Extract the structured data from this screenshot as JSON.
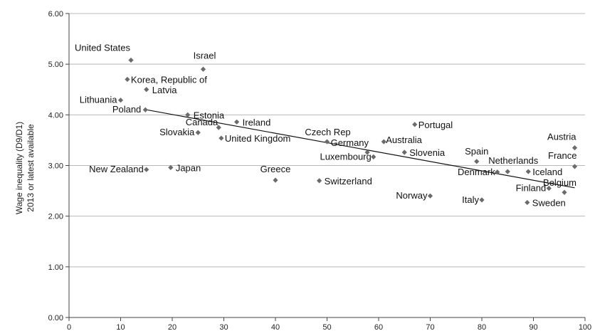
{
  "chart_data": {
    "type": "scatter",
    "title": "",
    "ylabel_lines": [
      "Wage inequality (D9/D1)",
      "2013 or latest available"
    ],
    "xlabel": "",
    "xlim": [
      0,
      100
    ],
    "ylim": [
      0,
      6
    ],
    "x_ticks": [
      "0",
      "10",
      "20",
      "30",
      "40",
      "50",
      "60",
      "70",
      "80",
      "90",
      "100"
    ],
    "y_ticks": [
      "0.00",
      "1.00",
      "2.00",
      "3.00",
      "4.00",
      "5.00",
      "6.00"
    ],
    "grid": "horizontal",
    "marker_color": "#6b6b6b",
    "trendline": {
      "x": [
        15,
        98
      ],
      "y": [
        4.1,
        2.56
      ]
    },
    "points": [
      {
        "label": "United States",
        "x": 12,
        "y": 5.08,
        "anchor": "end",
        "ldx": -1,
        "ldy": -13
      },
      {
        "label": "Israel",
        "x": 26,
        "y": 4.9,
        "anchor": "middle",
        "ldx": 2,
        "ldy": -15
      },
      {
        "label": "Korea, Republic of",
        "x": 11.3,
        "y": 4.7,
        "anchor": "start",
        "ldx": 5,
        "ldy": 5
      },
      {
        "label": "Latvia",
        "x": 15,
        "y": 4.5,
        "anchor": "start",
        "ldx": 8,
        "ldy": 5
      },
      {
        "label": "Lithuania",
        "x": 10,
        "y": 4.29,
        "anchor": "end",
        "ldx": -5,
        "ldy": 4
      },
      {
        "label": "Poland",
        "x": 14.8,
        "y": 4.1,
        "anchor": "end",
        "ldx": -6,
        "ldy": 4
      },
      {
        "label": "Estonia",
        "x": 23,
        "y": 4.0,
        "anchor": "start",
        "ldx": 8,
        "ldy": 5
      },
      {
        "label": "Ireland",
        "x": 32.5,
        "y": 3.86,
        "anchor": "start",
        "ldx": 8,
        "ldy": 5
      },
      {
        "label": "Canada",
        "x": 29,
        "y": 3.75,
        "anchor": "end",
        "ldx": -1,
        "ldy": -3
      },
      {
        "label": "Slovakia",
        "x": 25,
        "y": 3.65,
        "anchor": "end",
        "ldx": -5,
        "ldy": 4
      },
      {
        "label": "United Kingdom",
        "x": 29.5,
        "y": 3.54,
        "anchor": "start",
        "ldx": 5,
        "ldy": 5
      },
      {
        "label": "Czech Rep",
        "x": 50,
        "y": 3.47,
        "anchor": "middle",
        "ldx": 1,
        "ldy": -9
      },
      {
        "label": "Germany",
        "x": 57.8,
        "y": 3.26,
        "anchor": "end",
        "ldx": 2,
        "ldy": -9
      },
      {
        "label": "Australia",
        "x": 61,
        "y": 3.47,
        "anchor": "start",
        "ldx": 3,
        "ldy": 2
      },
      {
        "label": "Portugal",
        "x": 67,
        "y": 3.81,
        "anchor": "start",
        "ldx": 5,
        "ldy": 5
      },
      {
        "label": "Slovenia",
        "x": 65,
        "y": 3.26,
        "anchor": "start",
        "ldx": 7,
        "ldy": 5
      },
      {
        "label": "Luxembourg",
        "x": 59,
        "y": 3.17,
        "anchor": "end",
        "ldx": -3,
        "ldy": 4
      },
      {
        "label": "New Zealand",
        "x": 15,
        "y": 2.92,
        "anchor": "end",
        "ldx": -4,
        "ldy": 4
      },
      {
        "label": "Japan",
        "x": 19.7,
        "y": 2.96,
        "anchor": "start",
        "ldx": 7,
        "ldy": 5
      },
      {
        "label": "Greece",
        "x": 40,
        "y": 2.71,
        "anchor": "middle",
        "ldx": 0,
        "ldy": -11
      },
      {
        "label": "Switzerland",
        "x": 48.5,
        "y": 2.7,
        "anchor": "start",
        "ldx": 7,
        "ldy": 5
      },
      {
        "label": "Norway",
        "x": 70,
        "y": 2.4,
        "anchor": "end",
        "ldx": -4,
        "ldy": 4
      },
      {
        "label": "Spain",
        "x": 79,
        "y": 3.08,
        "anchor": "middle",
        "ldx": 0,
        "ldy": -10
      },
      {
        "label": "Denmark",
        "x": 83,
        "y": 2.87,
        "anchor": "end",
        "ldx": -3,
        "ldy": 4
      },
      {
        "label": "Netherlands",
        "x": 85,
        "y": 2.88,
        "anchor": "middle",
        "ldx": 8,
        "ldy": -11
      },
      {
        "label": "Italy",
        "x": 80,
        "y": 2.32,
        "anchor": "end",
        "ldx": -4,
        "ldy": 4
      },
      {
        "label": "Iceland",
        "x": 89,
        "y": 2.88,
        "anchor": "start",
        "ldx": 6,
        "ldy": 5
      },
      {
        "label": "Finland",
        "x": 93,
        "y": 2.55,
        "anchor": "end",
        "ldx": -4,
        "ldy": 4
      },
      {
        "label": "Sweden",
        "x": 88.8,
        "y": 2.27,
        "anchor": "start",
        "ldx": 7,
        "ldy": 5
      },
      {
        "label": "Belgium",
        "x": 96,
        "y": 2.47,
        "anchor": "end",
        "ldx": 17,
        "ldy": -9
      },
      {
        "label": "Austria",
        "x": 98,
        "y": 3.35,
        "anchor": "end",
        "ldx": 2,
        "ldy": -11
      },
      {
        "label": "France",
        "x": 98,
        "y": 2.98,
        "anchor": "end",
        "ldx": 3,
        "ldy": -11
      }
    ]
  }
}
